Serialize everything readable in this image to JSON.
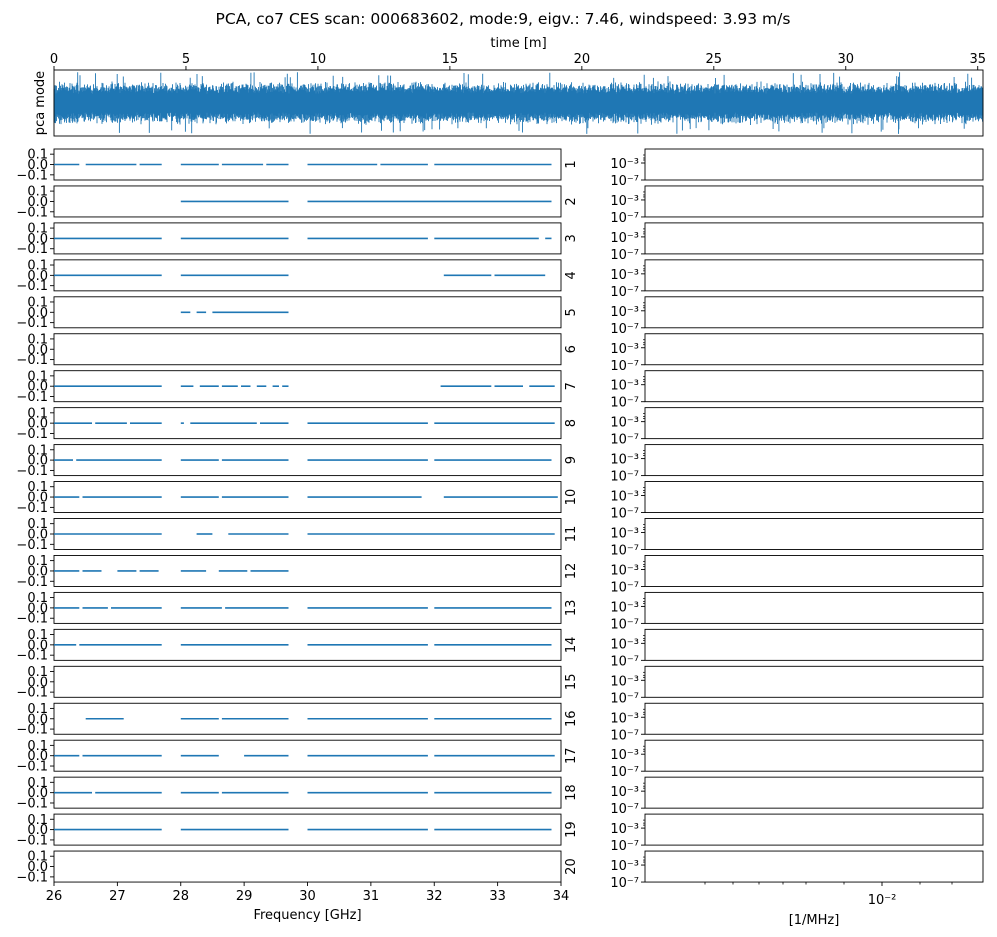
{
  "chart_data": [
    {
      "type": "line",
      "title": "PCA, co7 CES scan: 000683602, mode:9, eigv.: 7.46, windspeed: 3.93 m/s",
      "xlabel": "time [m]",
      "ylabel": "pca mode",
      "xlim": [
        0,
        35.2
      ],
      "xticks": [
        "0",
        "5",
        "10",
        "15",
        "20",
        "25",
        "30",
        "35"
      ],
      "xtick_values": [
        0,
        5,
        10,
        15,
        20,
        25,
        30,
        35
      ],
      "ylim": [
        -1,
        1
      ],
      "series_color": "#1f77b4",
      "series_description": "dense noise signal spanning almost the full y range over the whole scan"
    },
    {
      "type": "line",
      "xlabel": "Frequency [GHz]",
      "xlim": [
        26,
        34
      ],
      "xticks": [
        "26",
        "27",
        "28",
        "29",
        "30",
        "31",
        "32",
        "33",
        "34"
      ],
      "xtick_values": [
        26,
        27,
        28,
        29,
        30,
        31,
        32,
        33,
        34
      ],
      "ylim": [
        -0.15,
        0.15
      ],
      "yticks": [
        "0.1",
        "0.0",
        "−0.1"
      ],
      "ytick_values": [
        0.1,
        0.0,
        -0.1
      ],
      "panel_labels": [
        "1",
        "2",
        "3",
        "4",
        "5",
        "6",
        "7",
        "8",
        "9",
        "10",
        "11",
        "12",
        "13",
        "14",
        "15",
        "16",
        "17",
        "18",
        "19",
        "20"
      ],
      "series_color": "#1f77b4",
      "value": 0.0,
      "segments": [
        [
          [
            26.0,
            26.4
          ],
          [
            26.5,
            27.3
          ],
          [
            27.35,
            27.7
          ],
          [
            28.0,
            28.6
          ],
          [
            28.65,
            29.3
          ],
          [
            29.35,
            29.7
          ],
          [
            30.0,
            31.1
          ],
          [
            31.15,
            31.9
          ],
          [
            32.0,
            33.85
          ]
        ],
        [
          [
            28.0,
            29.7
          ],
          [
            30.0,
            33.85
          ]
        ],
        [
          [
            26.0,
            27.7
          ],
          [
            28.0,
            29.7
          ],
          [
            30.0,
            31.9
          ],
          [
            32.0,
            33.65
          ],
          [
            33.75,
            33.85
          ]
        ],
        [
          [
            26.0,
            27.7
          ],
          [
            28.0,
            29.7
          ],
          [
            32.15,
            32.9
          ],
          [
            32.95,
            33.75
          ]
        ],
        [
          [
            28.0,
            28.15
          ],
          [
            28.25,
            28.4
          ],
          [
            28.5,
            29.7
          ]
        ],
        [],
        [
          [
            26.0,
            27.7
          ],
          [
            28.0,
            28.2
          ],
          [
            28.3,
            28.6
          ],
          [
            28.65,
            28.9
          ],
          [
            28.95,
            29.1
          ],
          [
            29.2,
            29.35
          ],
          [
            29.45,
            29.55
          ],
          [
            29.6,
            29.7
          ],
          [
            32.1,
            32.9
          ],
          [
            32.95,
            33.4
          ],
          [
            33.5,
            33.9
          ]
        ],
        [
          [
            26.0,
            26.6
          ],
          [
            26.65,
            27.15
          ],
          [
            27.2,
            27.7
          ],
          [
            28.0,
            28.05
          ],
          [
            28.15,
            29.2
          ],
          [
            29.25,
            29.7
          ],
          [
            30.0,
            31.9
          ],
          [
            32.0,
            33.9
          ]
        ],
        [
          [
            26.0,
            26.3
          ],
          [
            26.35,
            27.7
          ],
          [
            28.0,
            28.6
          ],
          [
            28.65,
            29.7
          ],
          [
            30.0,
            31.9
          ],
          [
            32.0,
            33.85
          ]
        ],
        [
          [
            26.0,
            26.4
          ],
          [
            26.45,
            27.7
          ],
          [
            28.0,
            28.6
          ],
          [
            28.65,
            29.7
          ],
          [
            30.0,
            31.8
          ],
          [
            32.15,
            33.95
          ]
        ],
        [
          [
            26.0,
            27.7
          ],
          [
            28.25,
            28.5
          ],
          [
            28.75,
            29.7
          ],
          [
            30.0,
            33.9
          ]
        ],
        [
          [
            26.0,
            26.4
          ],
          [
            26.45,
            26.75
          ],
          [
            27.0,
            27.3
          ],
          [
            27.35,
            27.65
          ],
          [
            28.0,
            28.4
          ],
          [
            28.6,
            29.05
          ],
          [
            29.1,
            29.7
          ]
        ],
        [
          [
            26.0,
            26.4
          ],
          [
            26.45,
            26.85
          ],
          [
            26.9,
            27.7
          ],
          [
            28.0,
            28.65
          ],
          [
            28.7,
            29.7
          ],
          [
            30.0,
            31.9
          ],
          [
            32.0,
            33.85
          ]
        ],
        [
          [
            26.0,
            26.35
          ],
          [
            26.4,
            27.7
          ],
          [
            28.0,
            29.7
          ],
          [
            30.0,
            31.9
          ],
          [
            32.0,
            33.85
          ]
        ],
        [],
        [
          [
            26.5,
            27.1
          ],
          [
            28.0,
            28.6
          ],
          [
            28.65,
            29.7
          ],
          [
            30.0,
            31.9
          ],
          [
            32.0,
            33.85
          ]
        ],
        [
          [
            26.0,
            26.4
          ],
          [
            26.45,
            27.7
          ],
          [
            28.0,
            28.6
          ],
          [
            29.0,
            29.7
          ],
          [
            30.0,
            31.9
          ],
          [
            32.0,
            33.9
          ]
        ],
        [
          [
            26.0,
            26.6
          ],
          [
            26.65,
            27.7
          ],
          [
            28.0,
            28.6
          ],
          [
            28.65,
            29.7
          ],
          [
            30.0,
            31.9
          ],
          [
            32.0,
            33.85
          ]
        ],
        [
          [
            26.0,
            27.7
          ],
          [
            28.0,
            29.7
          ],
          [
            30.0,
            31.9
          ],
          [
            32.0,
            33.85
          ]
        ],
        []
      ]
    },
    {
      "type": "line",
      "xlabel": "[1/MHz]",
      "xscale": "log",
      "yscale": "log",
      "xticks": [
        "10⁻²"
      ],
      "yticks": [
        "10⁻³",
        "10⁻⁷"
      ],
      "panels": 20,
      "series": []
    }
  ]
}
